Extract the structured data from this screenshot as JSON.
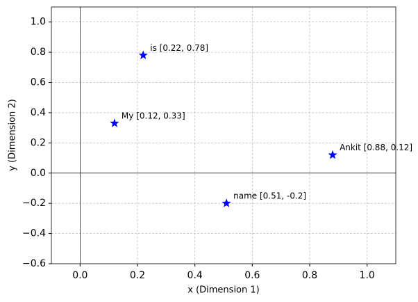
{
  "chart_data": {
    "type": "scatter",
    "x_label": "x (Dimension 1)",
    "y_label": "y (Dimension 2)",
    "x": [
      0.12,
      0.22,
      0.51,
      0.88
    ],
    "y": [
      0.33,
      0.78,
      -0.2,
      0.12
    ],
    "point_labels": [
      "My [0.12, 0.33]",
      "is [0.22, 0.78]",
      "name [0.51, -0.2]",
      "Ankit [0.88, 0.12]"
    ],
    "color": "#0000ff",
    "marker": "star",
    "xlim": [
      -0.1,
      1.1
    ],
    "xticks": [
      {
        "value": 0,
        "label": "0.0"
      },
      0.2,
      0.4,
      0.6,
      0.8,
      {
        "value": 1,
        "label": "1.0"
      }
    ],
    "ylim": [
      -0.6,
      1.1
    ],
    "yticks": [
      {
        "value": -0.6,
        "label": "−0.6"
      },
      {
        "value": -0.4,
        "label": "−0.4"
      },
      {
        "value": -0.2,
        "label": "−0.2"
      },
      {
        "value": 0,
        "label": "0.0"
      },
      0.2,
      0.4,
      0.6,
      0.8,
      {
        "value": 1,
        "label": "1.0"
      }
    ],
    "grid": true
  }
}
